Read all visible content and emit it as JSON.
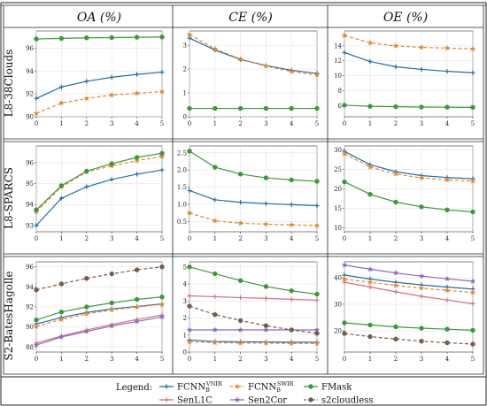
{
  "figure": {
    "col_headers": [
      "OA (%)",
      "CE (%)",
      "OE (%)"
    ],
    "row_headers": [
      "L8-38Clouds",
      "L8-SPARCS",
      "S2-BatesHagolle"
    ],
    "legend_title": "Legend:"
  },
  "series_styles": [
    {
      "name": "FCNN_B^VNIR",
      "base": "FCNN",
      "sub": "B",
      "sup": "VNIR",
      "color": "#1f6fa8",
      "dash": "solid",
      "marker": "plus"
    },
    {
      "name": "FCNN_B^SWIR",
      "base": "FCNN",
      "sub": "B",
      "sup": "SWIR",
      "color": "#e8862a",
      "dash": "dashed",
      "marker": "star"
    },
    {
      "name": "FMask",
      "color": "#3a9a3a",
      "dash": "solid",
      "marker": "circle"
    },
    {
      "name": "SenL1C",
      "color": "#d4707c",
      "dash": "solid",
      "marker": "plus"
    },
    {
      "name": "Sen2Cor",
      "color": "#8c6bbf",
      "dash": "solid",
      "marker": "star"
    },
    {
      "name": "s2cloudless",
      "color": "#7a5c4a",
      "dash": "dashed",
      "marker": "circle"
    }
  ],
  "chart_data": [
    {
      "type": "line",
      "row": "L8-38Clouds",
      "metric": "OA (%)",
      "x": [
        0,
        1,
        2,
        3,
        4,
        5
      ],
      "xlim": [
        0,
        5
      ],
      "ylim": [
        90,
        97.5
      ],
      "yticks": [
        90,
        92,
        94,
        96
      ],
      "series": [
        {
          "name": "FCNN_B^VNIR",
          "values": [
            91.6,
            92.6,
            93.1,
            93.45,
            93.7,
            93.9
          ]
        },
        {
          "name": "FCNN_B^SWIR",
          "values": [
            90.3,
            91.2,
            91.6,
            91.9,
            92.05,
            92.2
          ]
        },
        {
          "name": "FMask",
          "values": [
            96.8,
            96.85,
            96.9,
            96.92,
            96.95,
            96.97
          ]
        }
      ]
    },
    {
      "type": "line",
      "row": "L8-38Clouds",
      "metric": "CE (%)",
      "x": [
        0,
        1,
        2,
        3,
        4,
        5
      ],
      "xlim": [
        0,
        5
      ],
      "ylim": [
        0,
        3.6
      ],
      "yticks": [
        0,
        1,
        2,
        3
      ],
      "series": [
        {
          "name": "FCNN_B^VNIR",
          "values": [
            3.3,
            2.8,
            2.4,
            2.15,
            1.95,
            1.82
          ]
        },
        {
          "name": "FCNN_B^SWIR",
          "values": [
            3.45,
            2.85,
            2.42,
            2.12,
            1.9,
            1.75
          ]
        },
        {
          "name": "FMask",
          "values": [
            0.35,
            0.35,
            0.35,
            0.35,
            0.35,
            0.35
          ]
        }
      ]
    },
    {
      "type": "line",
      "row": "L8-38Clouds",
      "metric": "OE (%)",
      "x": [
        0,
        1,
        2,
        3,
        4,
        5
      ],
      "xlim": [
        0,
        5
      ],
      "ylim": [
        4.5,
        16
      ],
      "yticks": [
        6,
        8,
        10,
        12,
        14
      ],
      "series": [
        {
          "name": "FCNN_B^VNIR",
          "values": [
            13.1,
            11.9,
            11.2,
            10.85,
            10.6,
            10.4
          ]
        },
        {
          "name": "FCNN_B^SWIR",
          "values": [
            15.4,
            14.4,
            14.0,
            13.8,
            13.7,
            13.6
          ]
        },
        {
          "name": "FMask",
          "values": [
            6.05,
            5.9,
            5.85,
            5.8,
            5.78,
            5.76
          ]
        }
      ]
    },
    {
      "type": "line",
      "row": "L8-SPARCS",
      "metric": "OA (%)",
      "x": [
        0,
        1,
        2,
        3,
        4,
        5
      ],
      "xlim": [
        0,
        5
      ],
      "ylim": [
        92.7,
        96.8
      ],
      "yticks": [
        93,
        94,
        95,
        96
      ],
      "series": [
        {
          "name": "FCNN_B^VNIR",
          "values": [
            93.0,
            94.3,
            94.85,
            95.2,
            95.45,
            95.65
          ]
        },
        {
          "name": "FCNN_B^SWIR",
          "values": [
            93.65,
            94.85,
            95.55,
            95.85,
            96.1,
            96.3
          ]
        },
        {
          "name": "FMask",
          "values": [
            93.75,
            94.9,
            95.6,
            95.95,
            96.25,
            96.45
          ]
        }
      ]
    },
    {
      "type": "line",
      "row": "L8-SPARCS",
      "metric": "CE (%)",
      "x": [
        0,
        1,
        2,
        3,
        4,
        5
      ],
      "xlim": [
        0,
        5
      ],
      "ylim": [
        0.2,
        2.7
      ],
      "yticks": [
        0.5,
        1.0,
        1.5,
        2.0,
        2.5
      ],
      "series": [
        {
          "name": "FCNN_B^VNIR",
          "values": [
            1.4,
            1.13,
            1.06,
            1.02,
            0.99,
            0.96
          ]
        },
        {
          "name": "FCNN_B^SWIR",
          "values": [
            0.75,
            0.52,
            0.45,
            0.42,
            0.4,
            0.38
          ]
        },
        {
          "name": "FMask",
          "values": [
            2.55,
            2.08,
            1.88,
            1.77,
            1.71,
            1.67
          ]
        }
      ]
    },
    {
      "type": "line",
      "row": "L8-SPARCS",
      "metric": "OE (%)",
      "x": [
        0,
        1,
        2,
        3,
        4,
        5
      ],
      "xlim": [
        0,
        5
      ],
      "ylim": [
        9,
        31
      ],
      "yticks": [
        10,
        15,
        20,
        25,
        30
      ],
      "series": [
        {
          "name": "FCNN_B^VNIR",
          "values": [
            29.6,
            26.2,
            24.4,
            23.4,
            22.9,
            22.6
          ]
        },
        {
          "name": "FCNN_B^SWIR",
          "values": [
            29.0,
            25.6,
            23.8,
            22.8,
            22.3,
            22.0
          ]
        },
        {
          "name": "FMask",
          "values": [
            21.8,
            18.6,
            16.6,
            15.4,
            14.6,
            14.1
          ]
        }
      ]
    },
    {
      "type": "line",
      "row": "S2-BatesHagolle",
      "metric": "OA (%)",
      "x": [
        0,
        1,
        2,
        3,
        4,
        5
      ],
      "xlim": [
        0,
        5
      ],
      "ylim": [
        87.5,
        96.5
      ],
      "yticks": [
        88,
        90,
        92,
        94,
        96
      ],
      "series": [
        {
          "name": "FCNN_B^VNIR",
          "values": [
            90.3,
            90.95,
            91.45,
            91.8,
            92.05,
            92.3
          ]
        },
        {
          "name": "FCNN_B^SWIR",
          "values": [
            90.05,
            90.75,
            91.3,
            91.7,
            92.0,
            92.25
          ]
        },
        {
          "name": "FMask",
          "values": [
            90.7,
            91.5,
            92.0,
            92.4,
            92.75,
            93.0
          ]
        },
        {
          "name": "SenL1C",
          "values": [
            88.4,
            89.1,
            89.7,
            90.25,
            90.75,
            91.2
          ]
        },
        {
          "name": "Sen2Cor",
          "values": [
            88.2,
            89.0,
            89.55,
            90.1,
            90.55,
            91.0
          ]
        },
        {
          "name": "s2cloudless",
          "values": [
            93.7,
            94.3,
            94.85,
            95.3,
            95.7,
            96.0
          ]
        }
      ]
    },
    {
      "type": "line",
      "row": "S2-BatesHagolle",
      "metric": "CE (%)",
      "x": [
        0,
        1,
        2,
        3,
        4,
        5
      ],
      "xlim": [
        0,
        5
      ],
      "ylim": [
        0,
        5.3
      ],
      "yticks": [
        0,
        1,
        2,
        3,
        4,
        5
      ],
      "series": [
        {
          "name": "FCNN_B^VNIR",
          "values": [
            0.7,
            0.62,
            0.6,
            0.59,
            0.58,
            0.57
          ]
        },
        {
          "name": "FCNN_B^SWIR",
          "values": [
            0.6,
            0.55,
            0.53,
            0.52,
            0.51,
            0.5
          ]
        },
        {
          "name": "FMask",
          "values": [
            5.0,
            4.6,
            4.2,
            3.85,
            3.6,
            3.4
          ]
        },
        {
          "name": "SenL1C",
          "values": [
            3.3,
            3.25,
            3.2,
            3.15,
            3.1,
            3.05
          ]
        },
        {
          "name": "Sen2Cor",
          "values": [
            1.3,
            1.3,
            1.3,
            1.3,
            1.3,
            1.3
          ]
        },
        {
          "name": "s2cloudless",
          "values": [
            2.7,
            2.2,
            1.85,
            1.55,
            1.3,
            1.1
          ]
        }
      ]
    },
    {
      "type": "line",
      "row": "S2-BatesHagolle",
      "metric": "OE (%)",
      "x": [
        0,
        1,
        2,
        3,
        4,
        5
      ],
      "xlim": [
        0,
        5
      ],
      "ylim": [
        12,
        46
      ],
      "yticks": [
        20,
        30,
        40
      ],
      "series": [
        {
          "name": "FCNN_B^VNIR",
          "values": [
            41.0,
            39.5,
            38.3,
            37.3,
            36.5,
            35.7
          ]
        },
        {
          "name": "FCNN_B^SWIR",
          "values": [
            39.5,
            38.3,
            37.1,
            36.1,
            35.2,
            34.5
          ]
        },
        {
          "name": "FMask",
          "values": [
            23.0,
            22.2,
            21.5,
            21.0,
            20.6,
            20.2
          ]
        },
        {
          "name": "SenL1C",
          "values": [
            38.3,
            36.5,
            34.7,
            33.0,
            31.6,
            30.2
          ]
        },
        {
          "name": "Sen2Cor",
          "values": [
            44.8,
            43.2,
            41.8,
            40.6,
            39.6,
            38.7
          ]
        },
        {
          "name": "s2cloudless",
          "values": [
            19.0,
            17.8,
            16.9,
            16.1,
            15.5,
            15.0
          ]
        }
      ]
    }
  ]
}
